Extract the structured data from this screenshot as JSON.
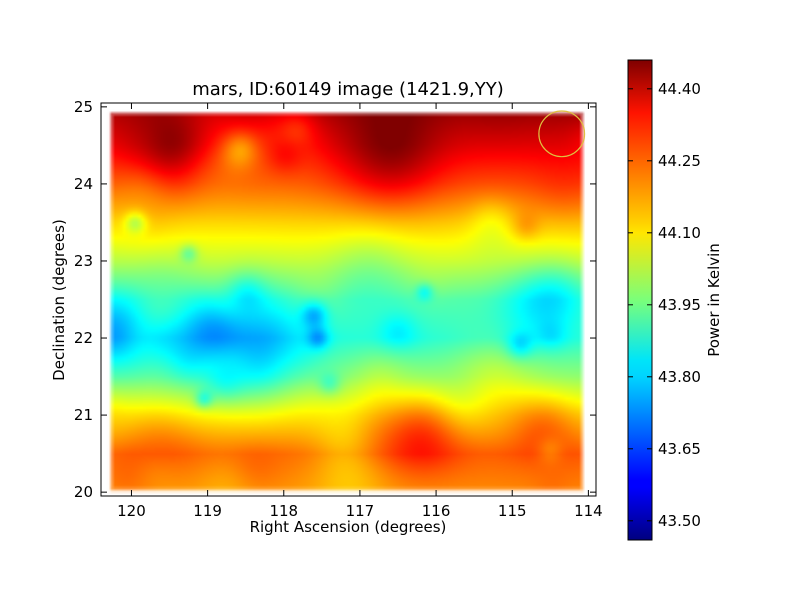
{
  "chart_data": {
    "type": "heatmap",
    "title": "mars, ID:60149 image (1421.9,YY)",
    "xlabel": "Right Ascension (degrees)",
    "ylabel": "Declination (degrees)",
    "xlim": [
      120.4,
      113.9
    ],
    "ylim": [
      19.95,
      25.05
    ],
    "x_ticks": [
      120,
      119,
      118,
      117,
      116,
      115,
      114
    ],
    "x_tick_labels": [
      "120",
      "119",
      "118",
      "117",
      "116",
      "115",
      "114"
    ],
    "y_ticks": [
      20,
      21,
      22,
      23,
      24,
      25
    ],
    "y_tick_labels": [
      "20",
      "21",
      "22",
      "23",
      "24",
      "25"
    ],
    "colorbar": {
      "label": "Power in Kelvin",
      "colormap": "jet",
      "range": [
        43.46,
        44.46
      ],
      "ticks": [
        43.5,
        43.65,
        43.8,
        43.95,
        44.1,
        44.25,
        44.4
      ],
      "tick_labels": [
        "43.50",
        "43.65",
        "43.80",
        "43.95",
        "44.10",
        "44.25",
        "44.40"
      ]
    },
    "marker": {
      "shape": "circle",
      "ra": 114.35,
      "dec": 24.65,
      "radius_deg": 0.3,
      "color": "#e0c040"
    },
    "data_extent": {
      "ra": [
        120.3,
        114.05
      ],
      "dec": [
        20.0,
        24.95
      ]
    },
    "grid": false,
    "field_profile": [
      {
        "dec": 20.0,
        "value": 44.18
      },
      {
        "dec": 20.5,
        "value": 44.22
      },
      {
        "dec": 21.0,
        "value": 44.1
      },
      {
        "dec": 21.5,
        "value": 43.95
      },
      {
        "dec": 22.0,
        "value": 43.86
      },
      {
        "dec": 22.5,
        "value": 43.9
      },
      {
        "dec": 23.0,
        "value": 44.02
      },
      {
        "dec": 23.5,
        "value": 44.12
      },
      {
        "dec": 24.0,
        "value": 44.24
      },
      {
        "dec": 24.5,
        "value": 44.34
      },
      {
        "dec": 25.0,
        "value": 44.42
      }
    ],
    "features": [
      {
        "ra": 120.2,
        "dec": 22.1,
        "amp": -0.16,
        "sigma": 0.35
      },
      {
        "ra": 119.0,
        "dec": 22.1,
        "amp": -0.1,
        "sigma": 0.3
      },
      {
        "ra": 118.4,
        "dec": 21.6,
        "amp": -0.12,
        "sigma": 0.35
      },
      {
        "ra": 117.6,
        "dec": 22.3,
        "amp": -0.14,
        "sigma": 0.12
      },
      {
        "ra": 117.55,
        "dec": 22.0,
        "amp": -0.12,
        "sigma": 0.1
      },
      {
        "ra": 119.05,
        "dec": 21.2,
        "amp": -0.12,
        "sigma": 0.08
      },
      {
        "ra": 119.95,
        "dec": 23.5,
        "amp": -0.12,
        "sigma": 0.1
      },
      {
        "ra": 119.25,
        "dec": 23.1,
        "amp": -0.1,
        "sigma": 0.08
      },
      {
        "ra": 116.15,
        "dec": 22.6,
        "amp": -0.1,
        "sigma": 0.08
      },
      {
        "ra": 114.9,
        "dec": 21.9,
        "amp": -0.1,
        "sigma": 0.12
      },
      {
        "ra": 117.4,
        "dec": 21.4,
        "amp": -0.08,
        "sigma": 0.1
      },
      {
        "ra": 118.5,
        "dec": 22.6,
        "amp": -0.08,
        "sigma": 0.18
      },
      {
        "ra": 116.6,
        "dec": 24.3,
        "amp": 0.12,
        "sigma": 0.45
      },
      {
        "ra": 116.2,
        "dec": 20.8,
        "amp": 0.12,
        "sigma": 0.35
      },
      {
        "ra": 114.6,
        "dec": 20.9,
        "amp": 0.08,
        "sigma": 0.3
      },
      {
        "ra": 119.6,
        "dec": 20.8,
        "amp": 0.05,
        "sigma": 0.35
      },
      {
        "ra": 114.4,
        "dec": 22.6,
        "amp": -0.08,
        "sigma": 0.3
      }
    ]
  }
}
